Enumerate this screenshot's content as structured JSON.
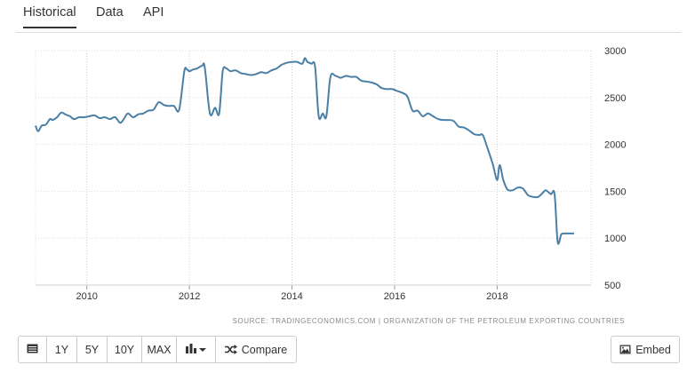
{
  "tabs": [
    "Historical",
    "Data",
    "API"
  ],
  "source_text": "SOURCE: TRADINGECONOMICS.COM | ORGANIZATION OF THE PETROLEUM EXPORTING COUNTRIES",
  "toolbar": {
    "calendar_icon": "calendar-icon",
    "range_buttons": [
      "1Y",
      "5Y",
      "10Y",
      "MAX"
    ],
    "chart_type_icon": "bar-chart-icon",
    "compare_label": "Compare",
    "compare_icon": "shuffle-icon",
    "embed_label": "Embed",
    "embed_icon": "image-icon"
  },
  "chart_data": {
    "type": "line",
    "line_color": "#4a7fa6",
    "x_ticks": [
      "2010",
      "2012",
      "2014",
      "2016",
      "2018"
    ],
    "y_ticks": [
      "3000",
      "2500",
      "2000",
      "1500",
      "1000",
      "500"
    ],
    "ylim": [
      500,
      3000
    ],
    "xlim": [
      2009.0,
      2019.83
    ],
    "grid": "vertical dotted",
    "y_axis_side": "right",
    "series": [
      {
        "x": [
          2009.0,
          2009.05,
          2009.12,
          2009.2,
          2009.28,
          2009.33,
          2009.42,
          2009.5,
          2009.58,
          2009.67,
          2009.75,
          2009.85,
          2009.95,
          2010.05,
          2010.15,
          2010.25,
          2010.35,
          2010.45,
          2010.55,
          2010.65,
          2010.72,
          2010.8,
          2010.9,
          2011.0,
          2011.1,
          2011.2,
          2011.3,
          2011.4,
          2011.5,
          2011.6,
          2011.7,
          2011.8,
          2011.9,
          2011.95,
          2012.0,
          2012.08,
          2012.15,
          2012.25,
          2012.3,
          2012.4,
          2012.5,
          2012.58,
          2012.65,
          2012.72,
          2012.8,
          2012.9,
          2013.0,
          2013.1,
          2013.2,
          2013.3,
          2013.4,
          2013.5,
          2013.6,
          2013.7,
          2013.8,
          2013.9,
          2014.0,
          2014.1,
          2014.2,
          2014.25,
          2014.3,
          2014.38,
          2014.45,
          2014.52,
          2014.6,
          2014.67,
          2014.75,
          2014.85,
          2014.95,
          2015.05,
          2015.15,
          2015.25,
          2015.35,
          2015.45,
          2015.55,
          2015.65,
          2015.75,
          2015.85,
          2015.95,
          2016.05,
          2016.15,
          2016.25,
          2016.35,
          2016.45,
          2016.55,
          2016.65,
          2016.75,
          2016.85,
          2016.95,
          2017.05,
          2017.15,
          2017.25,
          2017.35,
          2017.45,
          2017.55,
          2017.65,
          2017.72,
          2017.8,
          2017.85,
          2017.92,
          2018.0,
          2018.05,
          2018.12,
          2018.2,
          2018.3,
          2018.4,
          2018.5,
          2018.6,
          2018.7,
          2018.8,
          2018.9,
          2018.95,
          2019.05,
          2019.12,
          2019.18,
          2019.25,
          2019.32,
          2019.4,
          2019.5
        ],
        "y": [
          2200,
          2140,
          2200,
          2210,
          2270,
          2260,
          2290,
          2340,
          2320,
          2300,
          2270,
          2290,
          2290,
          2300,
          2310,
          2280,
          2290,
          2270,
          2290,
          2230,
          2270,
          2330,
          2290,
          2320,
          2330,
          2360,
          2370,
          2450,
          2420,
          2410,
          2410,
          2370,
          2780,
          2800,
          2780,
          2800,
          2810,
          2840,
          2820,
          2330,
          2390,
          2330,
          2780,
          2810,
          2780,
          2790,
          2760,
          2750,
          2740,
          2750,
          2770,
          2760,
          2790,
          2810,
          2850,
          2870,
          2880,
          2880,
          2860,
          2920,
          2880,
          2860,
          2830,
          2300,
          2330,
          2300,
          2720,
          2730,
          2710,
          2730,
          2720,
          2720,
          2680,
          2670,
          2660,
          2640,
          2600,
          2590,
          2590,
          2570,
          2550,
          2510,
          2360,
          2360,
          2300,
          2330,
          2300,
          2270,
          2260,
          2260,
          2250,
          2190,
          2180,
          2150,
          2110,
          2100,
          2100,
          1980,
          1900,
          1780,
          1620,
          1780,
          1620,
          1520,
          1510,
          1540,
          1530,
          1460,
          1440,
          1440,
          1490,
          1510,
          1470,
          1470,
          960,
          1040,
          1050,
          1050,
          1050
        ]
      }
    ]
  }
}
